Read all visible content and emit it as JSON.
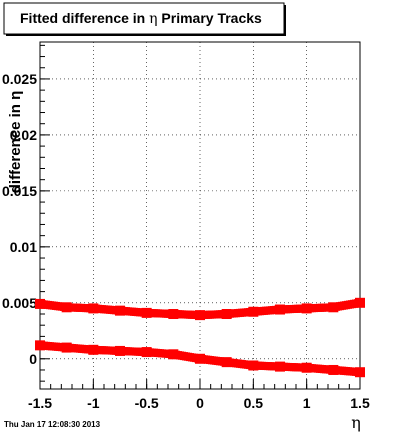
{
  "chart_data": {
    "type": "scatter",
    "title": {
      "prefix": "Fitted difference in ",
      "symbol": "η",
      "suffix": "  Primary Tracks"
    },
    "xlabel": "η",
    "ylabel": "difference in η",
    "xlim": [
      -1.5,
      1.5
    ],
    "ylim": [
      -0.0027,
      0.0283
    ],
    "grid": true,
    "x_ticks": [
      -1.5,
      -1,
      -0.5,
      0,
      0.5,
      1,
      1.5
    ],
    "x_tick_labels": [
      "-1.5",
      "-1",
      "-0.5",
      "0",
      "0.5",
      "1",
      "1.5"
    ],
    "y_ticks": [
      0,
      0.005,
      0.01,
      0.015,
      0.02,
      0.025
    ],
    "y_tick_labels": [
      "0",
      "0.005",
      "0.01",
      "0.015",
      "0.02",
      "0.025"
    ],
    "series": [
      {
        "color": "#ff0000",
        "x": [
          -1.5,
          -1.25,
          -1.0,
          -0.75,
          -0.5,
          -0.25,
          0.0,
          0.25,
          0.5,
          0.75,
          1.0,
          1.25,
          1.5
        ],
        "y": [
          0.0049,
          0.0046,
          0.0045,
          0.0043,
          0.0041,
          0.004,
          0.0039,
          0.004,
          0.0042,
          0.0044,
          0.0045,
          0.0046,
          0.005
        ]
      },
      {
        "color": "#ff0000",
        "x": [
          -1.5,
          -1.25,
          -1.0,
          -0.75,
          -0.5,
          -0.25,
          0.0,
          0.25,
          0.5,
          0.75,
          1.0,
          1.25,
          1.5
        ],
        "y": [
          0.0012,
          0.001,
          0.0008,
          0.0007,
          0.0006,
          0.0004,
          0.0,
          -0.0003,
          -0.0006,
          -0.0007,
          -0.0008,
          -0.001,
          -0.0012
        ]
      }
    ]
  },
  "footer": {
    "timestamp": "Thu Jan 17 12:08:30 2013"
  }
}
